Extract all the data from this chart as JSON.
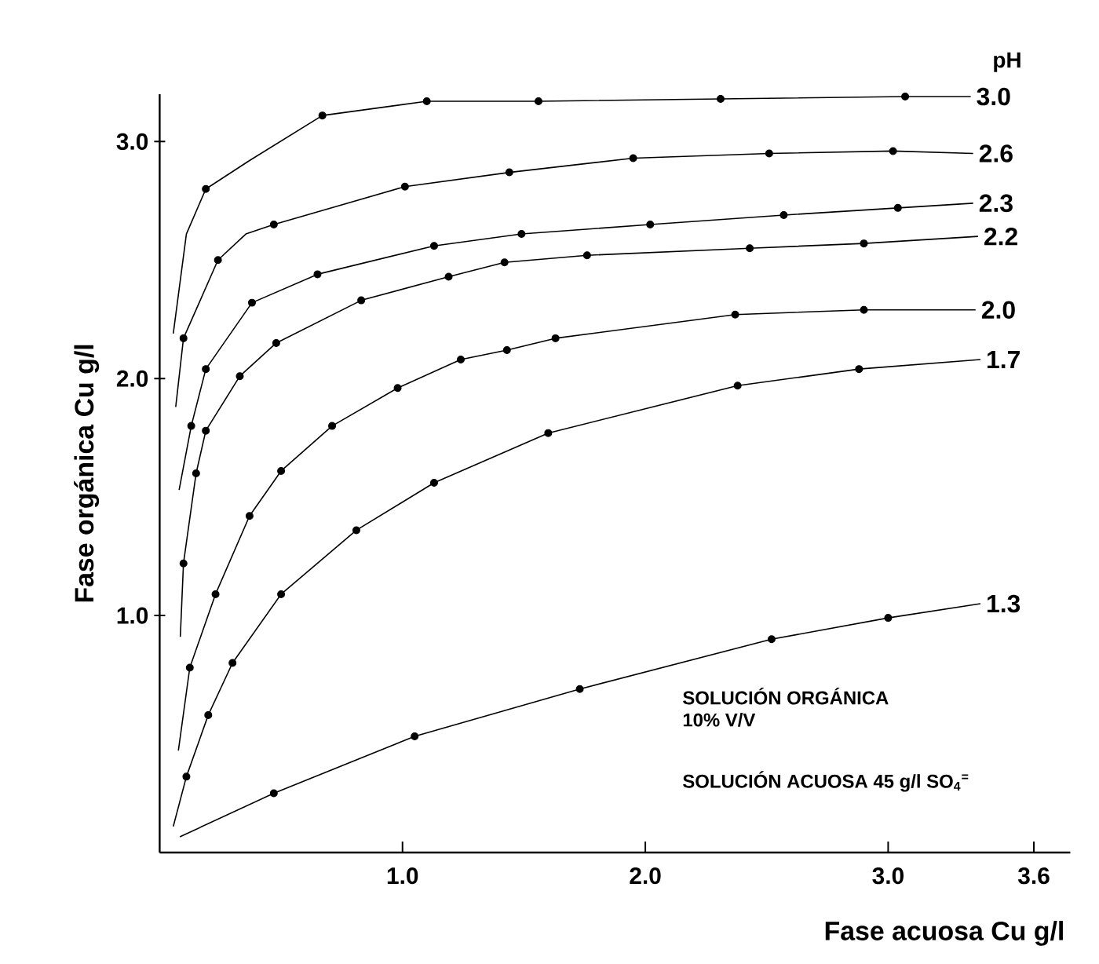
{
  "chart_data": {
    "type": "line",
    "xlabel": "Fase acuosa  Cu g/l",
    "ylabel": "Fase orgánica Cu g/l",
    "legend_title": "pH",
    "xlim": [
      0,
      3.75
    ],
    "ylim": [
      0,
      3.2
    ],
    "xticks": [
      {
        "value": 1,
        "label": "1.0"
      },
      {
        "value": 2,
        "label": "2.0"
      },
      {
        "value": 3,
        "label": "3.0"
      },
      3.6
    ],
    "yticks": [
      {
        "value": 1,
        "label": "1.0"
      },
      {
        "value": 2,
        "label": "2.0"
      },
      {
        "value": 3,
        "label": "3.0"
      }
    ],
    "grid": false,
    "line_style": "solid",
    "annotations": [
      "SOLUCIÓN ORGÁNICA",
      "10% V/V",
      "SOLUCIÓN ACUOSA 45 g/l SO$_{4}$$^{=}$"
    ],
    "series": [
      {
        "name": "3.0",
        "marker": "none",
        "color": "#000000",
        "x": [
          0.056,
          0.11,
          0.19,
          0.37,
          0.67,
          1.1,
          1.56,
          2.31,
          3.07,
          3.34
        ],
        "values": [
          2.19,
          2.61,
          2.8,
          2.92,
          3.11,
          3.17,
          3.17,
          3.18,
          3.19,
          3.19
        ]
      },
      {
        "type": "scatter",
        "marker": "circle",
        "color": "#000000",
        "x": [
          0.19,
          0.67,
          1.1,
          1.56,
          2.31,
          3.07
        ],
        "values": [
          2.8,
          3.11,
          3.17,
          3.17,
          3.18,
          3.19
        ]
      },
      {
        "name": "2.6",
        "marker": "none",
        "color": "#000000",
        "x": [
          0.066,
          0.098,
          0.24,
          0.355,
          0.47,
          1.01,
          1.44,
          1.95,
          2.51,
          3.02,
          3.35
        ],
        "values": [
          1.88,
          2.17,
          2.5,
          2.61,
          2.65,
          2.81,
          2.87,
          2.93,
          2.95,
          2.96,
          2.95
        ]
      },
      {
        "type": "scatter",
        "marker": "circle",
        "color": "#000000",
        "x": [
          0.098,
          0.24,
          0.47,
          1.01,
          1.44,
          1.95,
          2.51,
          3.02
        ],
        "values": [
          2.17,
          2.5,
          2.65,
          2.81,
          2.87,
          2.93,
          2.95,
          2.96
        ]
      },
      {
        "name": "2.3",
        "marker": "none",
        "color": "#000000",
        "x": [
          0.08,
          0.13,
          0.19,
          0.38,
          0.65,
          1.13,
          1.49,
          2.02,
          2.57,
          3.04,
          3.35
        ],
        "values": [
          1.53,
          1.8,
          2.04,
          2.32,
          2.44,
          2.56,
          2.61,
          2.65,
          2.69,
          2.72,
          2.74
        ]
      },
      {
        "type": "scatter",
        "marker": "circle",
        "color": "#000000",
        "x": [
          0.13,
          0.19,
          0.38,
          0.65,
          1.13,
          1.49,
          2.02,
          2.57,
          3.04
        ],
        "values": [
          1.8,
          2.04,
          2.32,
          2.44,
          2.56,
          2.61,
          2.65,
          2.69,
          2.72
        ]
      },
      {
        "name": "2.2",
        "marker": "none",
        "color": "#000000",
        "x": [
          0.085,
          0.098,
          0.15,
          0.19,
          0.33,
          0.48,
          0.83,
          1.19,
          1.42,
          1.76,
          2.43,
          2.9,
          3.37
        ],
        "values": [
          0.91,
          1.22,
          1.6,
          1.78,
          2.01,
          2.15,
          2.33,
          2.43,
          2.49,
          2.52,
          2.55,
          2.57,
          2.6
        ]
      },
      {
        "type": "scatter",
        "marker": "circle",
        "color": "#000000",
        "x": [
          0.098,
          0.15,
          0.19,
          0.33,
          0.48,
          0.83,
          1.19,
          1.42,
          1.76,
          2.43,
          2.9
        ],
        "values": [
          1.22,
          1.6,
          1.78,
          2.01,
          2.15,
          2.33,
          2.43,
          2.49,
          2.52,
          2.55,
          2.57
        ]
      },
      {
        "name": "2.0",
        "marker": "none",
        "color": "#000000",
        "x": [
          0.077,
          0.124,
          0.23,
          0.37,
          0.5,
          0.71,
          0.98,
          1.24,
          1.43,
          1.63,
          2.37,
          2.9,
          3.36
        ],
        "values": [
          0.43,
          0.78,
          1.09,
          1.42,
          1.61,
          1.8,
          1.96,
          2.08,
          2.12,
          2.17,
          2.27,
          2.29,
          2.29
        ]
      },
      {
        "type": "scatter",
        "marker": "circle",
        "color": "#000000",
        "x": [
          0.124,
          0.23,
          0.37,
          0.5,
          0.71,
          0.98,
          1.24,
          1.43,
          1.63,
          2.37,
          2.9
        ],
        "values": [
          0.78,
          1.09,
          1.42,
          1.61,
          1.8,
          1.96,
          2.08,
          2.12,
          2.17,
          2.27,
          2.29
        ]
      },
      {
        "name": "1.7",
        "marker": "none",
        "color": "#000000",
        "x": [
          0.056,
          0.11,
          0.2,
          0.3,
          0.5,
          0.81,
          1.13,
          1.6,
          2.38,
          2.88,
          3.38
        ],
        "values": [
          0.11,
          0.32,
          0.58,
          0.8,
          1.09,
          1.36,
          1.56,
          1.77,
          1.97,
          2.04,
          2.08
        ]
      },
      {
        "type": "scatter",
        "marker": "circle",
        "color": "#000000",
        "x": [
          0.11,
          0.2,
          0.3,
          0.5,
          0.81,
          1.13,
          1.6,
          2.38,
          2.88
        ],
        "values": [
          0.32,
          0.58,
          0.8,
          1.09,
          1.36,
          1.56,
          1.77,
          1.97,
          2.04
        ]
      },
      {
        "name": "1.3",
        "marker": "none",
        "color": "#000000",
        "x": [
          0.083,
          0.47,
          1.05,
          1.73,
          2.52,
          3.0,
          3.38
        ],
        "values": [
          0.066,
          0.25,
          0.49,
          0.69,
          0.9,
          0.99,
          1.05
        ]
      },
      {
        "type": "scatter",
        "marker": "circle",
        "color": "#000000",
        "x": [
          0.47,
          1.05,
          1.73,
          2.52,
          3.0
        ],
        "values": [
          0.25,
          0.49,
          0.69,
          0.9,
          0.99
        ]
      }
    ]
  }
}
